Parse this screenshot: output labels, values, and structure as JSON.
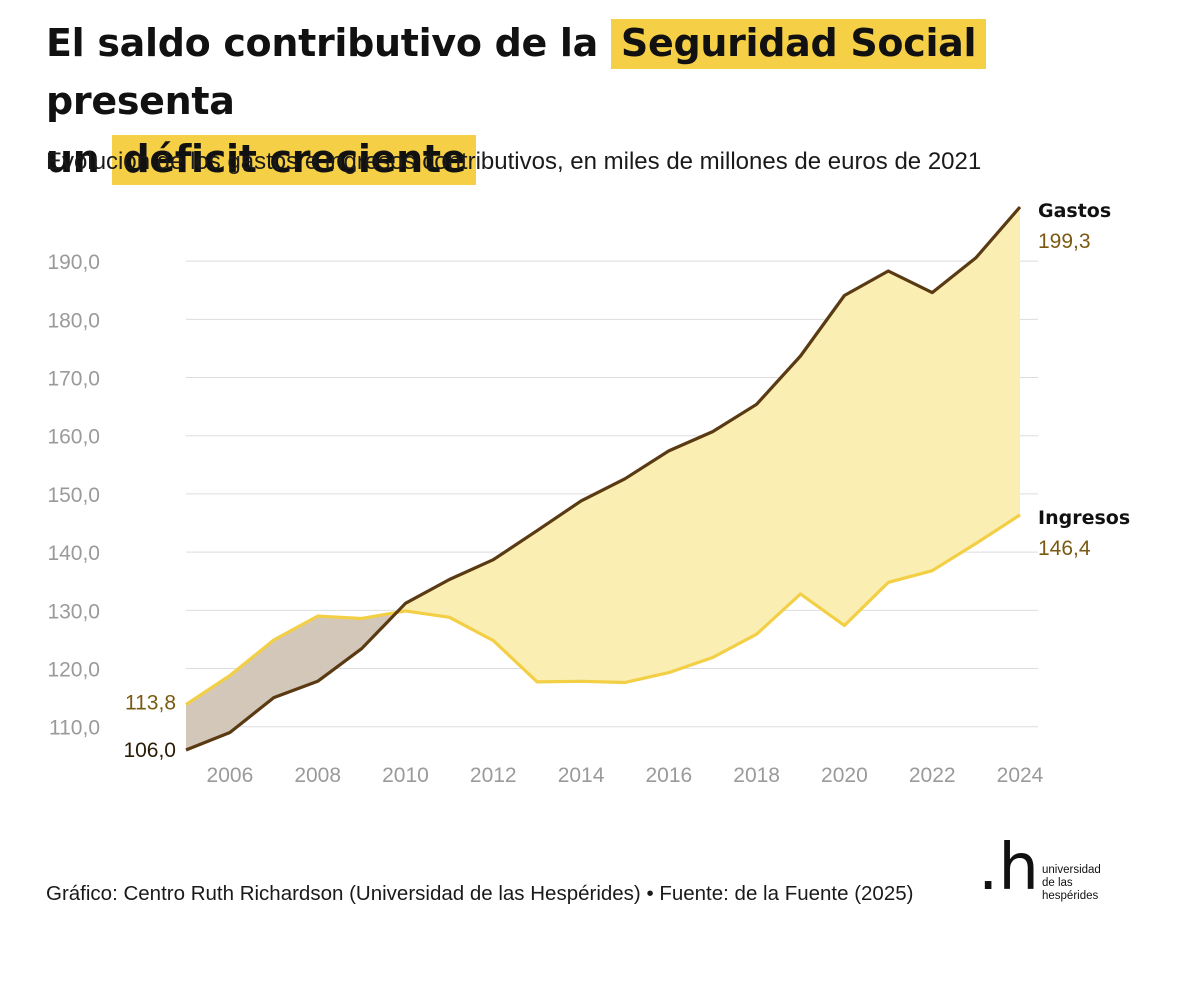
{
  "header": {
    "title_part1": "El saldo contributivo de la",
    "title_highlight1": "Seguridad Social",
    "title_part2": "presenta",
    "title_part3": "un",
    "title_highlight2": "déficit creciente",
    "subtitle": "Evolución de los gastos e ingresos contributivos, en miles de millones de euros de 2021"
  },
  "footer": {
    "source": "Gráfico: Centro Ruth Richardson (Universidad de las Hespérides) • Fuente: de la Fuente (2025)"
  },
  "logo": {
    "mark": ".h",
    "line1": "universidad",
    "line2": "de las",
    "line3": "hespérides"
  },
  "colors": {
    "highlight": "#f5cf46",
    "gastos_line": "#5a3a12",
    "ingresos_line": "#f2cf45",
    "deficit_fill": "#faeeb3",
    "surplus_fill": "#d3c7ba",
    "value_label": "#7a5a12",
    "axis_text": "#9a9a9a",
    "grid": "#dddddd"
  },
  "chart_data": {
    "type": "area",
    "x": [
      2005,
      2006,
      2007,
      2008,
      2009,
      2010,
      2011,
      2012,
      2013,
      2014,
      2015,
      2016,
      2017,
      2018,
      2019,
      2020,
      2021,
      2022,
      2023,
      2024
    ],
    "series": [
      {
        "name": "Gastos",
        "values": [
          106.0,
          109.0,
          115.0,
          117.8,
          123.4,
          131.2,
          135.3,
          138.7,
          143.7,
          148.8,
          152.6,
          157.4,
          160.7,
          165.4,
          173.7,
          184.1,
          188.3,
          184.6,
          190.6,
          199.3
        ]
      },
      {
        "name": "Ingresos",
        "values": [
          113.8,
          118.8,
          124.9,
          129.0,
          128.6,
          129.9,
          128.8,
          124.8,
          117.7,
          117.8,
          117.6,
          119.3,
          121.9,
          125.9,
          132.8,
          127.4,
          134.8,
          136.8,
          141.5,
          146.4
        ]
      }
    ],
    "end_labels": [
      {
        "series": "Gastos",
        "name": "Gastos",
        "value": "199,3"
      },
      {
        "series": "Ingresos",
        "name": "Ingresos",
        "value": "146,4"
      }
    ],
    "start_labels": [
      {
        "series": "Ingresos",
        "value": "113,8"
      },
      {
        "series": "Gastos",
        "value": "106,0"
      }
    ],
    "y_ticks": [
      "110,0",
      "120,0",
      "130,0",
      "140,0",
      "150,0",
      "160,0",
      "170,0",
      "180,0",
      "190,0"
    ],
    "y_tick_values": [
      110,
      120,
      130,
      140,
      150,
      160,
      170,
      180,
      190
    ],
    "x_ticks": [
      "2006",
      "2008",
      "2010",
      "2012",
      "2014",
      "2016",
      "2018",
      "2020",
      "2022",
      "2024"
    ],
    "x_tick_values": [
      2006,
      2008,
      2010,
      2012,
      2014,
      2016,
      2018,
      2020,
      2022,
      2024
    ],
    "xlim": [
      2005,
      2024
    ],
    "ylim": [
      106,
      199.3
    ],
    "grid": "horizontal",
    "legend": "none"
  }
}
